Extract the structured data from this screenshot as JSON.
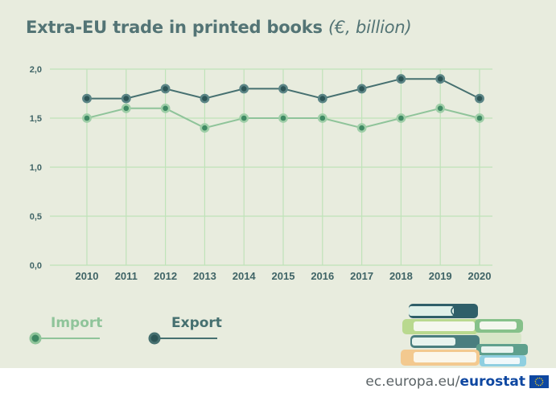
{
  "title": "Extra-EU trade in printed books",
  "title_unit": "(€, billion)",
  "legend": {
    "import": "Import",
    "export": "Export"
  },
  "footer": {
    "domain": "ec.europa.eu/",
    "brand": "eurostat"
  },
  "colors": {
    "background": "#e8ecde",
    "import": "#8fc49a",
    "export": "#467070",
    "grid": "#bfe3b9",
    "text": "#3f6466"
  },
  "chart_data": {
    "type": "line",
    "title": "Extra-EU trade in printed books",
    "categories": [
      "2010",
      "2011",
      "2012",
      "2013",
      "2014",
      "2015",
      "2016",
      "2017",
      "2018",
      "2019",
      "2020"
    ],
    "series": [
      {
        "name": "Import",
        "values": [
          1.5,
          1.6,
          1.6,
          1.4,
          1.5,
          1.5,
          1.5,
          1.4,
          1.5,
          1.6,
          1.5
        ]
      },
      {
        "name": "Export",
        "values": [
          1.7,
          1.7,
          1.8,
          1.7,
          1.8,
          1.8,
          1.7,
          1.8,
          1.9,
          1.9,
          1.7
        ]
      }
    ],
    "y_ticks": [
      "0,0",
      "0,5",
      "1,0",
      "1,5",
      "2,0"
    ],
    "ylim": [
      0,
      2
    ],
    "grid": true,
    "legend_position": "bottom-left"
  }
}
